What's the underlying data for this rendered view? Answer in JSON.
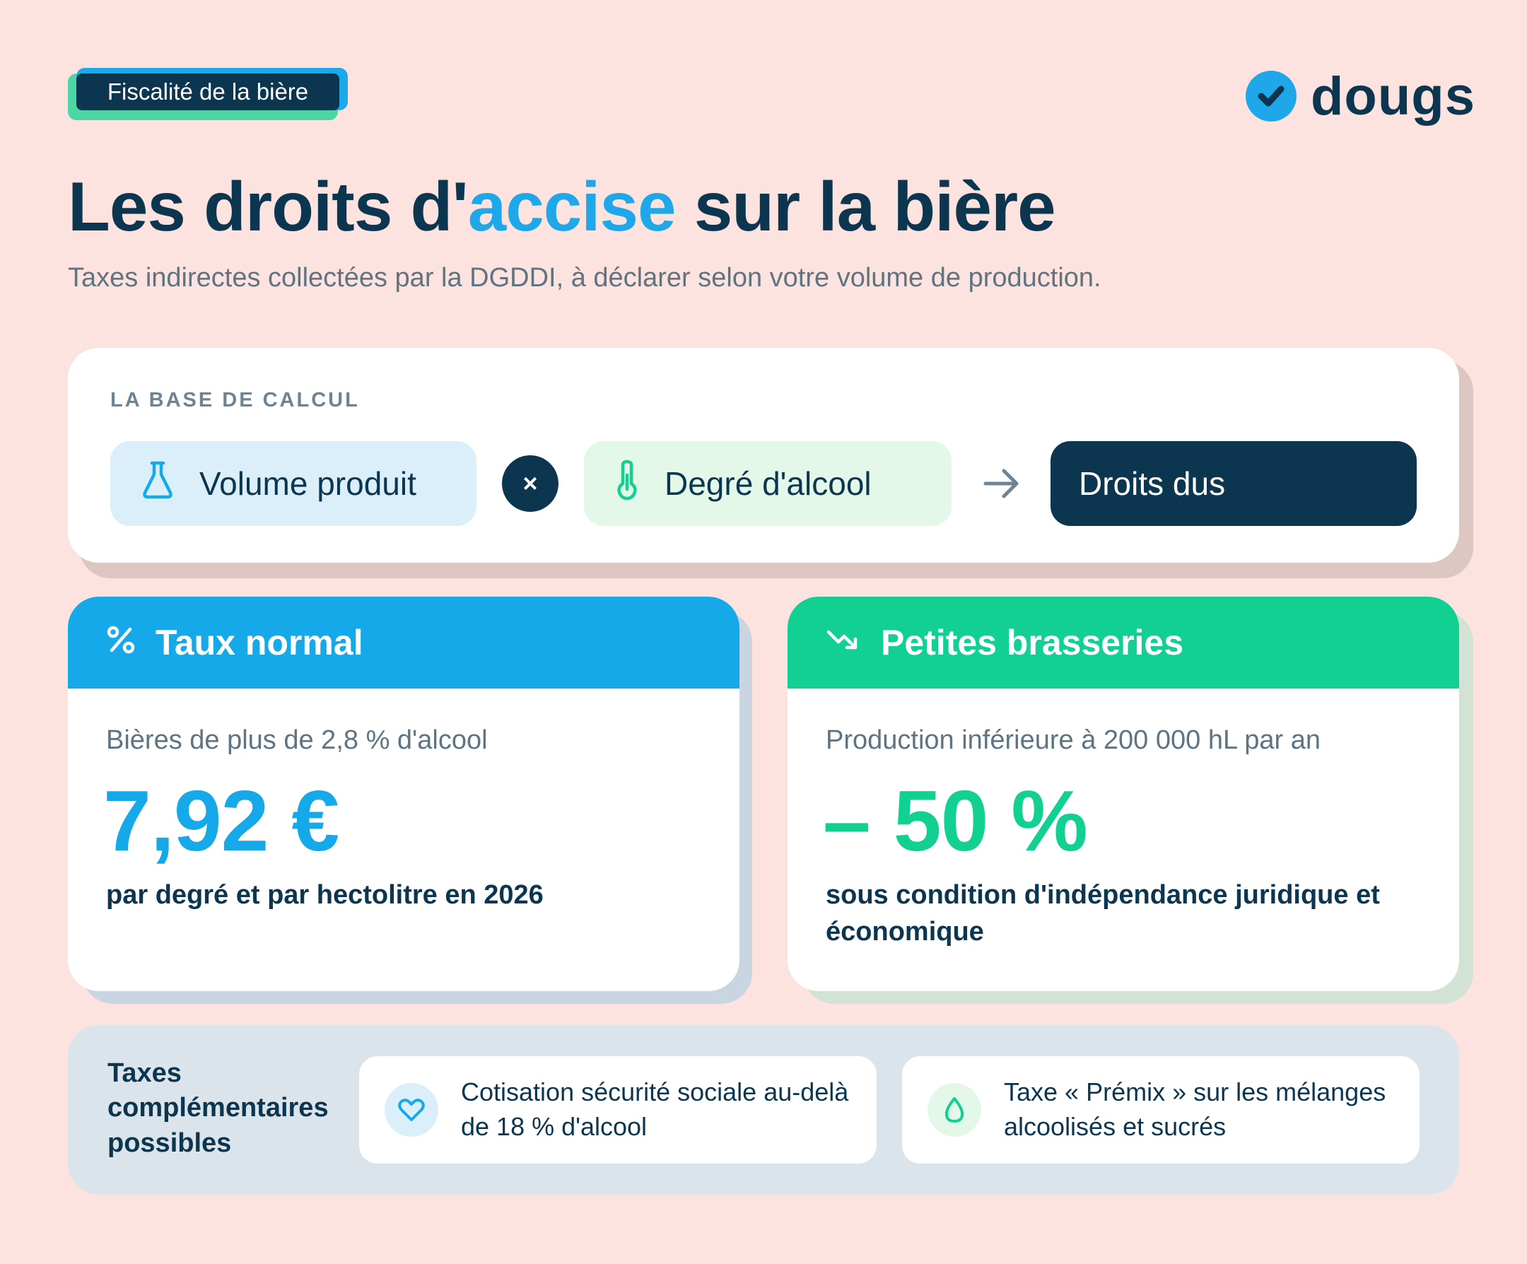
{
  "tag": {
    "label": "Fiscalité de la bière"
  },
  "logo": {
    "text": "dougs",
    "icon": "check-circle-icon"
  },
  "heading": {
    "title_before": "Les droits d'",
    "title_highlight": "accise",
    "title_after": " sur la bière",
    "subtitle": "Taxes indirectes collectées par la DGDDI, à déclarer selon votre volume de production."
  },
  "calc": {
    "label": "LA BASE DE CALCUL",
    "volume": "Volume produit",
    "operator": "×",
    "degree": "Degré d'alcool",
    "result": "Droits dus"
  },
  "normal_rate": {
    "icon": "percent-icon",
    "title": "Taux normal",
    "description": "Bières de plus de 2,8 % d'alcool",
    "value": "7,92 €",
    "note": "par degré et par hectolitre en 2026"
  },
  "small_breweries": {
    "icon": "trend-down-icon",
    "title": "Petites brasseries",
    "description": "Production inférieure à 200 000 hL par an",
    "value": "– 50 %",
    "note": "sous condition d'indépendance juridique et économique"
  },
  "complementary": {
    "title": "Taxes complémentaires possibles",
    "items": [
      {
        "icon": "heart-icon",
        "text": "Cotisation sécurité sociale au-delà de 18 % d'alcool"
      },
      {
        "icon": "drop-icon",
        "text": "Taxe « Prémix » sur les mélanges alcoolisés et sucrés"
      }
    ]
  },
  "colors": {
    "background": "#fde3df",
    "navy": "#0c3650",
    "blue": "#16a9ea",
    "green": "#12cf92"
  }
}
